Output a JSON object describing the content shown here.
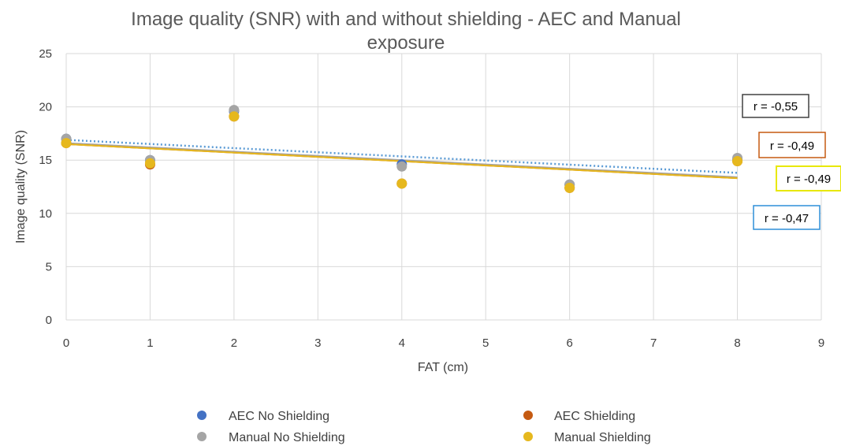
{
  "chart_data": {
    "type": "scatter",
    "title_lines": [
      "Image quality (SNR) with and without shielding - AEC and Manual",
      "exposure"
    ],
    "xlabel": "FAT (cm)",
    "ylabel": "Image quality (SNR)",
    "xlim": [
      0,
      9
    ],
    "ylim": [
      0,
      25
    ],
    "xticks": [
      0,
      1,
      2,
      3,
      4,
      5,
      6,
      7,
      8,
      9
    ],
    "yticks": [
      0,
      5,
      10,
      15,
      20,
      25
    ],
    "grid": true,
    "legend_position": "bottom",
    "series": [
      {
        "name": "AEC No Shielding",
        "color": "#4472C4",
        "x": [
          0,
          1,
          2,
          4,
          6,
          8
        ],
        "y": [
          17.0,
          15.0,
          19.6,
          14.6,
          12.7,
          15.1
        ]
      },
      {
        "name": "AEC Shielding",
        "color": "#C55A11",
        "x": [
          0,
          1,
          2,
          4,
          6,
          8
        ],
        "y": [
          16.6,
          14.6,
          19.1,
          12.8,
          12.4,
          14.9
        ]
      },
      {
        "name": "Manual No Shielding",
        "color": "#A5A5A5",
        "x": [
          0,
          1,
          2,
          4,
          6,
          8
        ],
        "y": [
          17.0,
          15.0,
          19.7,
          14.4,
          12.7,
          15.2
        ]
      },
      {
        "name": "Manual Shielding",
        "color": "#E6B81E",
        "x": [
          0,
          1,
          2,
          4,
          6,
          8
        ],
        "y": [
          16.6,
          14.7,
          19.1,
          12.8,
          12.4,
          14.9
        ]
      }
    ],
    "trendlines": [
      {
        "color": "#5B9BD5",
        "style": "dotted",
        "x": [
          0,
          8
        ],
        "y": [
          16.9,
          13.8
        ]
      },
      {
        "color": "#A5A5A5",
        "style": "solid",
        "x": [
          0,
          8
        ],
        "y": [
          16.6,
          13.4
        ]
      },
      {
        "color": "#C55A11",
        "style": "solid",
        "x": [
          0,
          8
        ],
        "y": [
          16.5,
          13.3
        ]
      },
      {
        "color": "#E6B81E",
        "style": "solid",
        "x": [
          0,
          8
        ],
        "y": [
          16.5,
          13.3
        ]
      }
    ],
    "annotations": [
      {
        "text": "r = -0,55",
        "border": "#404040"
      },
      {
        "text": "r = -0,49",
        "border": "#C55A11"
      },
      {
        "text": "r = -0,49",
        "border": "#E8E800"
      },
      {
        "text": "r = -0,47",
        "border": "#2E8FD8"
      }
    ]
  }
}
